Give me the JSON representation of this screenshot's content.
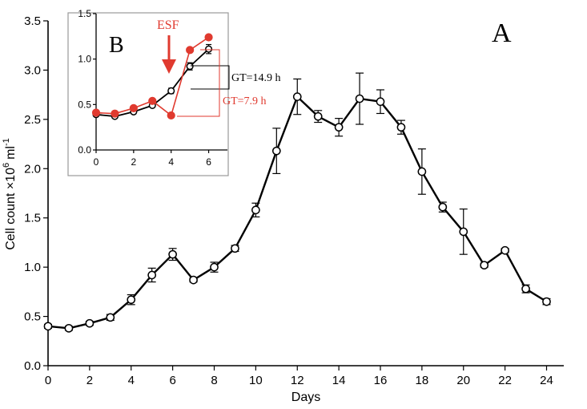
{
  "chart_data": [
    {
      "panel": "A",
      "type": "line",
      "xlabel": "Days",
      "ylabel_main": "Cell count ×10",
      "ylabel_exp": "6",
      "ylabel_unit": "ml",
      "ylabel_unit_exp": "-1",
      "xlim": [
        0,
        25
      ],
      "ylim": [
        0,
        3.5
      ],
      "xticks": [
        0,
        2,
        4,
        6,
        8,
        10,
        12,
        14,
        16,
        18,
        20,
        22,
        24
      ],
      "yticks": [
        "0.0",
        "0.5",
        "1.0",
        "1.5",
        "2.0",
        "2.5",
        "3.0",
        "3.5"
      ],
      "series": [
        {
          "x": [
            0,
            1,
            2,
            3,
            4,
            5,
            6,
            7,
            8,
            9,
            10,
            11,
            12,
            13,
            14,
            15,
            16,
            17,
            18,
            19,
            20,
            21,
            22,
            23,
            24
          ],
          "y": [
            0.4,
            0.38,
            0.43,
            0.49,
            0.67,
            0.92,
            1.13,
            0.87,
            1.0,
            1.19,
            1.58,
            2.18,
            2.73,
            2.53,
            2.42,
            2.71,
            2.68,
            2.42,
            1.97,
            1.61,
            1.36,
            1.02,
            1.17,
            0.78,
            0.65
          ],
          "err": [
            0.02,
            0.02,
            0.02,
            0.03,
            0.05,
            0.07,
            0.06,
            0.02,
            0.05,
            0.03,
            0.07,
            0.23,
            0.18,
            0.06,
            0.09,
            0.26,
            0.12,
            0.07,
            0.23,
            0.05,
            0.23,
            0.02,
            0.02,
            0.04,
            0.03
          ]
        }
      ]
    },
    {
      "panel": "B",
      "type": "line",
      "xlim": [
        0,
        7
      ],
      "ylim": [
        0,
        1.5
      ],
      "xticks": [
        0,
        2,
        4,
        6
      ],
      "yticks": [
        "0.0",
        "0.5",
        "1.0",
        "1.5"
      ],
      "series": [
        {
          "color": "#000000",
          "x": [
            0,
            1,
            2,
            3,
            4,
            5,
            6
          ],
          "y": [
            0.39,
            0.37,
            0.42,
            0.49,
            0.65,
            0.92,
            1.11
          ],
          "err": [
            0.02,
            0.02,
            0.02,
            0.02,
            0.03,
            0.04,
            0.05
          ]
        },
        {
          "color": "#e03a2f",
          "x": [
            0,
            1,
            2,
            3,
            4,
            5,
            6
          ],
          "y": [
            0.41,
            0.4,
            0.46,
            0.54,
            0.38,
            1.1,
            1.24
          ]
        }
      ],
      "annotations": {
        "esf": "ESF",
        "gt_black": "GT=14.9 h",
        "gt_red": "GT=7.9 h"
      }
    }
  ]
}
